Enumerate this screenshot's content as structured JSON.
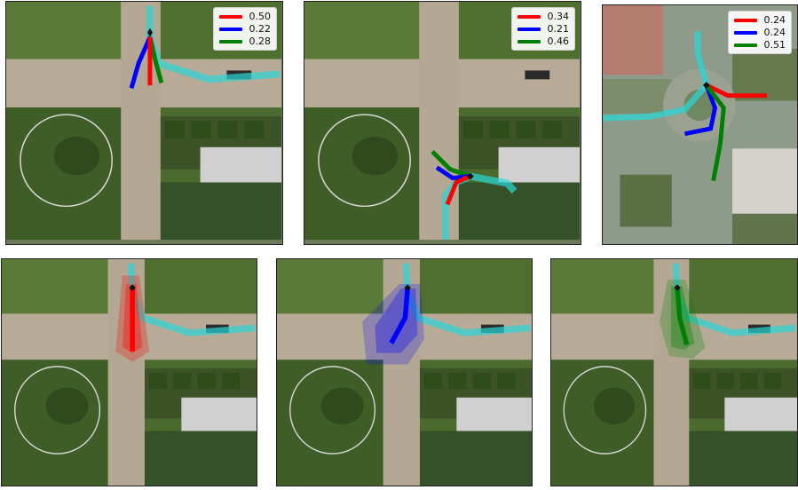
{
  "panels": [
    {
      "legend": [
        {
          "color": "#ff0000",
          "label": "0.50"
        },
        {
          "color": "#0000ff",
          "label": "0.22"
        },
        {
          "color": "#008000",
          "label": "0.28"
        }
      ]
    },
    {
      "legend": [
        {
          "color": "#ff0000",
          "label": "0.34"
        },
        {
          "color": "#0000ff",
          "label": "0.21"
        },
        {
          "color": "#008000",
          "label": "0.46"
        }
      ]
    },
    {
      "legend": [
        {
          "color": "#ff0000",
          "label": "0.24"
        },
        {
          "color": "#0000ff",
          "label": "0.24"
        },
        {
          "color": "#008000",
          "label": "0.51"
        }
      ]
    }
  ],
  "colors": {
    "history": "#2ad6d6",
    "red": "#ff0000",
    "blue": "#0000ff",
    "green": "#008000"
  }
}
